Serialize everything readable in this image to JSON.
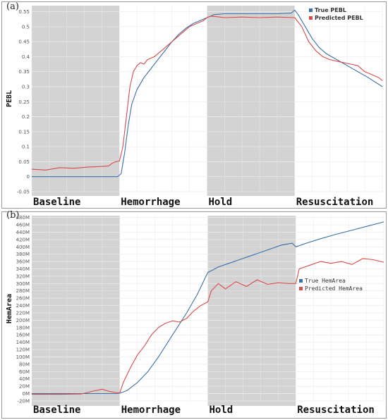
{
  "panels": {
    "a": {
      "label": "(a)"
    },
    "b": {
      "label": "(b)"
    }
  },
  "chart_data": [
    {
      "type": "line",
      "panel": "(a)",
      "ylabel": "PEBL",
      "ylim": [
        -0.05,
        0.57
      ],
      "yticks": [
        -0.05,
        0,
        0.05,
        0.1,
        0.15,
        0.2,
        0.25,
        0.3,
        0.35,
        0.4,
        0.45,
        0.5,
        0.55
      ],
      "ytick_labels": [
        "-0.05",
        "0",
        "0.05",
        "0.1",
        "0.15",
        "0.2",
        "0.25",
        "0.3",
        "0.35",
        "0.4",
        "0.45",
        "0.5",
        "0.55"
      ],
      "xlim": [
        0,
        100
      ],
      "grid": true,
      "legend_position": "top-right",
      "phases": [
        {
          "label": "Baseline",
          "start": 0,
          "end": 25,
          "shaded": true
        },
        {
          "label": "Hemorrhage",
          "start": 25,
          "end": 50,
          "shaded": false
        },
        {
          "label": "Hold",
          "start": 50,
          "end": 75,
          "shaded": true
        },
        {
          "label": "Resuscitation",
          "start": 75,
          "end": 100,
          "shaded": false
        }
      ],
      "series": [
        {
          "name": "True PEBL",
          "color": "#3a6fa8",
          "points": [
            [
              0,
              0.0
            ],
            [
              24.5,
              0.0
            ],
            [
              25.5,
              0.01
            ],
            [
              26.5,
              0.08
            ],
            [
              27.5,
              0.17
            ],
            [
              28.5,
              0.24
            ],
            [
              30,
              0.29
            ],
            [
              32,
              0.33
            ],
            [
              34,
              0.36
            ],
            [
              36,
              0.39
            ],
            [
              38,
              0.42
            ],
            [
              40,
              0.45
            ],
            [
              42,
              0.475
            ],
            [
              44,
              0.495
            ],
            [
              46,
              0.51
            ],
            [
              48,
              0.52
            ],
            [
              50,
              0.53
            ],
            [
              52,
              0.54
            ],
            [
              55,
              0.543
            ],
            [
              60,
              0.543
            ],
            [
              65,
              0.543
            ],
            [
              70,
              0.543
            ],
            [
              74,
              0.545
            ],
            [
              75,
              0.555
            ],
            [
              76,
              0.54
            ],
            [
              78,
              0.5
            ],
            [
              80,
              0.46
            ],
            [
              82,
              0.43
            ],
            [
              84,
              0.41
            ],
            [
              87,
              0.39
            ],
            [
              90,
              0.37
            ],
            [
              93,
              0.35
            ],
            [
              96,
              0.33
            ],
            [
              100,
              0.3
            ]
          ]
        },
        {
          "name": "Predicted PEBL",
          "color": "#d94a4a",
          "points": [
            [
              0,
              0.025
            ],
            [
              4,
              0.022
            ],
            [
              8,
              0.03
            ],
            [
              12,
              0.028
            ],
            [
              16,
              0.032
            ],
            [
              20,
              0.034
            ],
            [
              22,
              0.036
            ],
            [
              23,
              0.045
            ],
            [
              24,
              0.05
            ],
            [
              25,
              0.052
            ],
            [
              26,
              0.1
            ],
            [
              27,
              0.2
            ],
            [
              28,
              0.3
            ],
            [
              29,
              0.35
            ],
            [
              30,
              0.37
            ],
            [
              31,
              0.38
            ],
            [
              32,
              0.375
            ],
            [
              33,
              0.39
            ],
            [
              35,
              0.4
            ],
            [
              37,
              0.42
            ],
            [
              39,
              0.44
            ],
            [
              41,
              0.46
            ],
            [
              43,
              0.48
            ],
            [
              45,
              0.5
            ],
            [
              47,
              0.51
            ],
            [
              49,
              0.52
            ],
            [
              50,
              0.53
            ],
            [
              51,
              0.535
            ],
            [
              53,
              0.533
            ],
            [
              55,
              0.53
            ],
            [
              60,
              0.532
            ],
            [
              65,
              0.53
            ],
            [
              70,
              0.532
            ],
            [
              75,
              0.53
            ],
            [
              77,
              0.5
            ],
            [
              79,
              0.45
            ],
            [
              81,
              0.42
            ],
            [
              83,
              0.4
            ],
            [
              85,
              0.39
            ],
            [
              87,
              0.385
            ],
            [
              89,
              0.38
            ],
            [
              91,
              0.375
            ],
            [
              93,
              0.37
            ],
            [
              95,
              0.35
            ],
            [
              97,
              0.34
            ],
            [
              99,
              0.33
            ],
            [
              100,
              0.32
            ]
          ]
        }
      ]
    },
    {
      "type": "line",
      "panel": "(b)",
      "ylabel": "HemArea",
      "ylim": [
        -22000000,
        485000000
      ],
      "yticks": [
        -20000000,
        0,
        20000000,
        40000000,
        60000000,
        80000000,
        100000000,
        120000000,
        140000000,
        160000000,
        180000000,
        200000000,
        220000000,
        240000000,
        260000000,
        280000000,
        300000000,
        320000000,
        340000000,
        360000000,
        380000000,
        400000000,
        420000000,
        440000000,
        460000000,
        480000000
      ],
      "ytick_labels": [
        "-20M",
        "0M",
        "20M",
        "40M",
        "60M",
        "80M",
        "100M",
        "120M",
        "140M",
        "160M",
        "180M",
        "200M",
        "220M",
        "240M",
        "260M",
        "280M",
        "300M",
        "320M",
        "340M",
        "360M",
        "380M",
        "400M",
        "420M",
        "440M",
        "460M",
        "480M"
      ],
      "xlim": [
        0,
        100
      ],
      "grid": true,
      "legend_position": "right",
      "phases": [
        {
          "label": "Baseline",
          "start": 0,
          "end": 25,
          "shaded": true
        },
        {
          "label": "Hemorrhage",
          "start": 25,
          "end": 50,
          "shaded": false
        },
        {
          "label": "Hold",
          "start": 50,
          "end": 75,
          "shaded": true
        },
        {
          "label": "Resuscitation",
          "start": 75,
          "end": 100,
          "shaded": false
        }
      ],
      "series": [
        {
          "name": "True HemArea",
          "color": "#3a6fa8",
          "points": [
            [
              0,
              0
            ],
            [
              24,
              0
            ],
            [
              25,
              1000000
            ],
            [
              27,
              8000000
            ],
            [
              30,
              30000000
            ],
            [
              33,
              60000000
            ],
            [
              36,
              100000000
            ],
            [
              40,
              160000000
            ],
            [
              44,
              220000000
            ],
            [
              47,
              270000000
            ],
            [
              50,
              330000000
            ],
            [
              53,
              345000000
            ],
            [
              56,
              355000000
            ],
            [
              59,
              365000000
            ],
            [
              62,
              375000000
            ],
            [
              65,
              385000000
            ],
            [
              68,
              395000000
            ],
            [
              71,
              405000000
            ],
            [
              74,
              410000000
            ],
            [
              75,
              400000000
            ],
            [
              78,
              410000000
            ],
            [
              82,
              422000000
            ],
            [
              86,
              433000000
            ],
            [
              90,
              443000000
            ],
            [
              94,
              453000000
            ],
            [
              100,
              468000000
            ]
          ]
        },
        {
          "name": "Predicted HemArea",
          "color": "#d94a4a",
          "points": [
            [
              0,
              -2000000
            ],
            [
              8,
              -2000000
            ],
            [
              14,
              -1000000
            ],
            [
              18,
              8000000
            ],
            [
              20,
              12000000
            ],
            [
              22,
              6000000
            ],
            [
              24,
              3000000
            ],
            [
              25,
              2000000
            ],
            [
              26,
              30000000
            ],
            [
              28,
              70000000
            ],
            [
              30,
              105000000
            ],
            [
              32,
              130000000
            ],
            [
              34,
              160000000
            ],
            [
              36,
              180000000
            ],
            [
              38,
              192000000
            ],
            [
              40,
              198000000
            ],
            [
              42,
              195000000
            ],
            [
              44,
              205000000
            ],
            [
              46,
              225000000
            ],
            [
              48,
              240000000
            ],
            [
              50,
              250000000
            ],
            [
              51,
              280000000
            ],
            [
              53,
              300000000
            ],
            [
              55,
              285000000
            ],
            [
              58,
              305000000
            ],
            [
              61,
              292000000
            ],
            [
              64,
              310000000
            ],
            [
              67,
              298000000
            ],
            [
              70,
              302000000
            ],
            [
              73,
              300000000
            ],
            [
              75,
              300000000
            ],
            [
              76,
              340000000
            ],
            [
              79,
              350000000
            ],
            [
              82,
              360000000
            ],
            [
              85,
              355000000
            ],
            [
              88,
              360000000
            ],
            [
              91,
              352000000
            ],
            [
              94,
              368000000
            ],
            [
              97,
              365000000
            ],
            [
              100,
              358000000
            ]
          ]
        }
      ]
    }
  ]
}
